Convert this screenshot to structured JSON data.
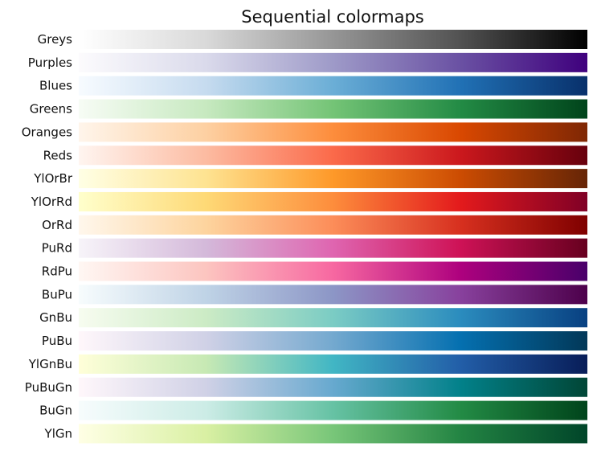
{
  "chart_data": {
    "type": "heatmap",
    "title": "Sequential colormaps",
    "xlabel": "",
    "ylabel": "",
    "grid": false,
    "axes_visible": false,
    "colormaps": [
      {
        "name": "Greys",
        "colors": [
          "#ffffff",
          "#d9d9d9",
          "#969696",
          "#525252",
          "#000000"
        ]
      },
      {
        "name": "Purples",
        "colors": [
          "#fcfbfd",
          "#dadaeb",
          "#9e9ac8",
          "#6a51a3",
          "#3f007d"
        ]
      },
      {
        "name": "Blues",
        "colors": [
          "#f7fbff",
          "#c6dbef",
          "#6baed6",
          "#2171b5",
          "#08306b"
        ]
      },
      {
        "name": "Greens",
        "colors": [
          "#f7fcf5",
          "#c7e9c0",
          "#74c476",
          "#238b45",
          "#00441b"
        ]
      },
      {
        "name": "Oranges",
        "colors": [
          "#fff5eb",
          "#fdd0a2",
          "#fd8d3c",
          "#d94801",
          "#7f2704"
        ]
      },
      {
        "name": "Reds",
        "colors": [
          "#fff5f0",
          "#fcbba1",
          "#fb6a4a",
          "#cb181d",
          "#67000d"
        ]
      },
      {
        "name": "YlOrBr",
        "colors": [
          "#ffffe5",
          "#fee391",
          "#fe9929",
          "#cc4c02",
          "#662506"
        ]
      },
      {
        "name": "YlOrRd",
        "colors": [
          "#ffffcc",
          "#fed976",
          "#fd8d3c",
          "#e31a1c",
          "#800026"
        ]
      },
      {
        "name": "OrRd",
        "colors": [
          "#fff7ec",
          "#fdd49e",
          "#fc8d59",
          "#d7301f",
          "#7f0000"
        ]
      },
      {
        "name": "PuRd",
        "colors": [
          "#f7f4f9",
          "#d4b9da",
          "#df65b0",
          "#ce1256",
          "#67001f"
        ]
      },
      {
        "name": "RdPu",
        "colors": [
          "#fff7f3",
          "#fcc5c0",
          "#f768a1",
          "#ae017e",
          "#49006a"
        ]
      },
      {
        "name": "BuPu",
        "colors": [
          "#f7fcfd",
          "#bfd3e6",
          "#8c96c6",
          "#88419d",
          "#4d004b"
        ]
      },
      {
        "name": "GnBu",
        "colors": [
          "#f7fcf0",
          "#ccebc5",
          "#7bccc4",
          "#2b8cbe",
          "#084081"
        ]
      },
      {
        "name": "PuBu",
        "colors": [
          "#fff7fb",
          "#d0d1e6",
          "#74a9cf",
          "#0570b0",
          "#023858"
        ]
      },
      {
        "name": "YlGnBu",
        "colors": [
          "#ffffd9",
          "#c7e9b4",
          "#41b6c4",
          "#225ea8",
          "#081d58"
        ]
      },
      {
        "name": "PuBuGn",
        "colors": [
          "#fff7fb",
          "#d0d1e6",
          "#67a9cf",
          "#02818a",
          "#014636"
        ]
      },
      {
        "name": "BuGn",
        "colors": [
          "#f7fcfd",
          "#ccece6",
          "#66c2a4",
          "#238b45",
          "#00441b"
        ]
      },
      {
        "name": "YlGn",
        "colors": [
          "#ffffe5",
          "#d9f0a3",
          "#78c679",
          "#238443",
          "#004529"
        ]
      }
    ]
  }
}
